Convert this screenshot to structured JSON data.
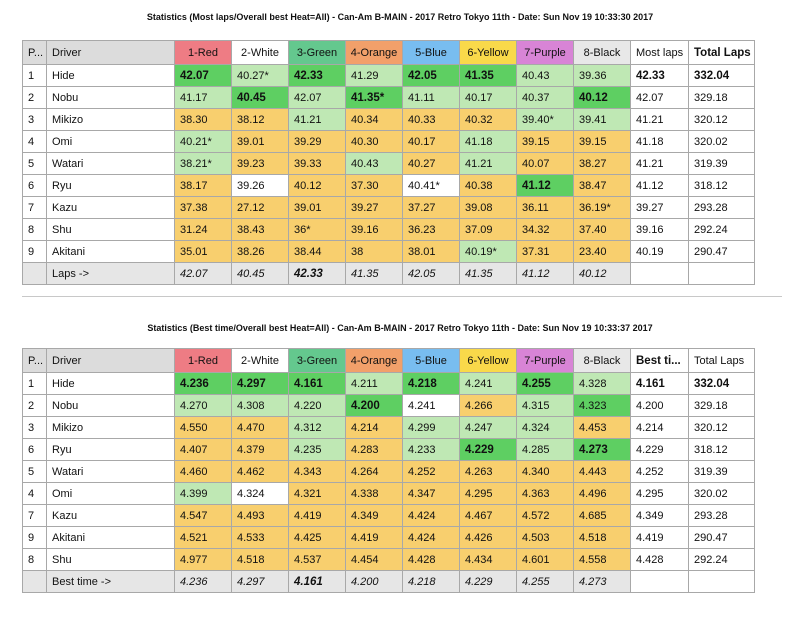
{
  "laps": {
    "title": "Statistics (Most laps/Overall best Heat=All) - Can-Am B-MAIN - 2017 Retro Tokyo 11th - Date: Sun Nov 19 10:33:30 2017",
    "headers": [
      "P...",
      "Driver",
      "1-Red",
      "2-White",
      "3-Green",
      "4-Orange",
      "5-Blue",
      "6-Yellow",
      "7-Purple",
      "8-Black",
      "Most laps",
      "Total Laps"
    ],
    "rows": [
      {
        "p": "1",
        "driver": "Hide",
        "c": [
          "42.07",
          "40.27*",
          "42.33",
          "41.29",
          "42.05",
          "41.35",
          "40.43",
          "39.36"
        ],
        "most": "42.33",
        "total": "332.04"
      },
      {
        "p": "2",
        "driver": "Nobu",
        "c": [
          "41.17",
          "40.45",
          "42.07",
          "41.35*",
          "41.11",
          "40.17",
          "40.37",
          "40.12"
        ],
        "most": "42.07",
        "total": "329.18"
      },
      {
        "p": "3",
        "driver": "Mikizo",
        "c": [
          "38.30",
          "38.12",
          "41.21",
          "40.34",
          "40.33",
          "40.32",
          "39.40*",
          "39.41"
        ],
        "most": "41.21",
        "total": "320.12"
      },
      {
        "p": "4",
        "driver": "Omi",
        "c": [
          "40.21*",
          "39.01",
          "39.29",
          "40.30",
          "40.17",
          "41.18",
          "39.15",
          "39.15"
        ],
        "most": "41.18",
        "total": "320.02"
      },
      {
        "p": "5",
        "driver": "Watari",
        "c": [
          "38.21*",
          "39.23",
          "39.33",
          "40.43",
          "40.27",
          "41.21",
          "40.07",
          "38.27"
        ],
        "most": "41.21",
        "total": "319.39"
      },
      {
        "p": "6",
        "driver": "Ryu",
        "c": [
          "38.17",
          "39.26",
          "40.12",
          "37.30",
          "40.41*",
          "40.38",
          "41.12",
          "38.47"
        ],
        "most": "41.12",
        "total": "318.12"
      },
      {
        "p": "7",
        "driver": "Kazu",
        "c": [
          "37.38",
          "27.12",
          "39.01",
          "39.27",
          "37.27",
          "39.08",
          "36.11",
          "36.19*"
        ],
        "most": "39.27",
        "total": "293.28"
      },
      {
        "p": "8",
        "driver": "Shu",
        "c": [
          "31.24",
          "38.43",
          "36*",
          "39.16",
          "36.23",
          "37.09",
          "34.32",
          "37.40"
        ],
        "most": "39.16",
        "total": "292.24"
      },
      {
        "p": "9",
        "driver": "Akitani",
        "c": [
          "35.01",
          "38.26",
          "38.44",
          "38",
          "38.01",
          "40.19*",
          "37.31",
          "23.40"
        ],
        "most": "40.19",
        "total": "290.47"
      }
    ],
    "footer": {
      "label": "Laps ->",
      "c": [
        "42.07",
        "40.45",
        "42.33",
        "41.35",
        "42.05",
        "41.35",
        "41.12",
        "40.12"
      ]
    }
  },
  "best": {
    "title": "Statistics (Best time/Overall best Heat=All) - Can-Am B-MAIN - 2017 Retro Tokyo 11th - Date: Sun Nov 19 10:33:37 2017",
    "headers": [
      "P...",
      "Driver",
      "1-Red",
      "2-White",
      "3-Green",
      "4-Orange",
      "5-Blue",
      "6-Yellow",
      "7-Purple",
      "8-Black",
      "Best ti...",
      "Total Laps"
    ],
    "rows": [
      {
        "p": "1",
        "driver": "Hide",
        "c": [
          "4.236",
          "4.297",
          "4.161",
          "4.211",
          "4.218",
          "4.241",
          "4.255",
          "4.328"
        ],
        "most": "4.161",
        "total": "332.04"
      },
      {
        "p": "2",
        "driver": "Nobu",
        "c": [
          "4.270",
          "4.308",
          "4.220",
          "4.200",
          "4.241",
          "4.266",
          "4.315",
          "4.323"
        ],
        "most": "4.200",
        "total": "329.18"
      },
      {
        "p": "3",
        "driver": "Mikizo",
        "c": [
          "4.550",
          "4.470",
          "4.312",
          "4.214",
          "4.299",
          "4.247",
          "4.324",
          "4.453"
        ],
        "most": "4.214",
        "total": "320.12"
      },
      {
        "p": "6",
        "driver": "Ryu",
        "c": [
          "4.407",
          "4.379",
          "4.235",
          "4.283",
          "4.233",
          "4.229",
          "4.285",
          "4.273"
        ],
        "most": "4.229",
        "total": "318.12"
      },
      {
        "p": "5",
        "driver": "Watari",
        "c": [
          "4.460",
          "4.462",
          "4.343",
          "4.264",
          "4.252",
          "4.263",
          "4.340",
          "4.443"
        ],
        "most": "4.252",
        "total": "319.39"
      },
      {
        "p": "4",
        "driver": "Omi",
        "c": [
          "4.399",
          "4.324",
          "4.321",
          "4.338",
          "4.347",
          "4.295",
          "4.363",
          "4.496"
        ],
        "most": "4.295",
        "total": "320.02"
      },
      {
        "p": "7",
        "driver": "Kazu",
        "c": [
          "4.547",
          "4.493",
          "4.419",
          "4.349",
          "4.424",
          "4.467",
          "4.572",
          "4.685"
        ],
        "most": "4.349",
        "total": "293.28"
      },
      {
        "p": "9",
        "driver": "Akitani",
        "c": [
          "4.521",
          "4.533",
          "4.425",
          "4.419",
          "4.424",
          "4.426",
          "4.503",
          "4.518"
        ],
        "most": "4.419",
        "total": "290.47"
      },
      {
        "p": "8",
        "driver": "Shu",
        "c": [
          "4.977",
          "4.518",
          "4.537",
          "4.454",
          "4.428",
          "4.434",
          "4.601",
          "4.558"
        ],
        "most": "4.428",
        "total": "292.24"
      }
    ],
    "footer": {
      "label": "Best time ->",
      "c": [
        "4.236",
        "4.297",
        "4.161",
        "4.200",
        "4.218",
        "4.229",
        "4.255",
        "4.273"
      ]
    }
  }
}
